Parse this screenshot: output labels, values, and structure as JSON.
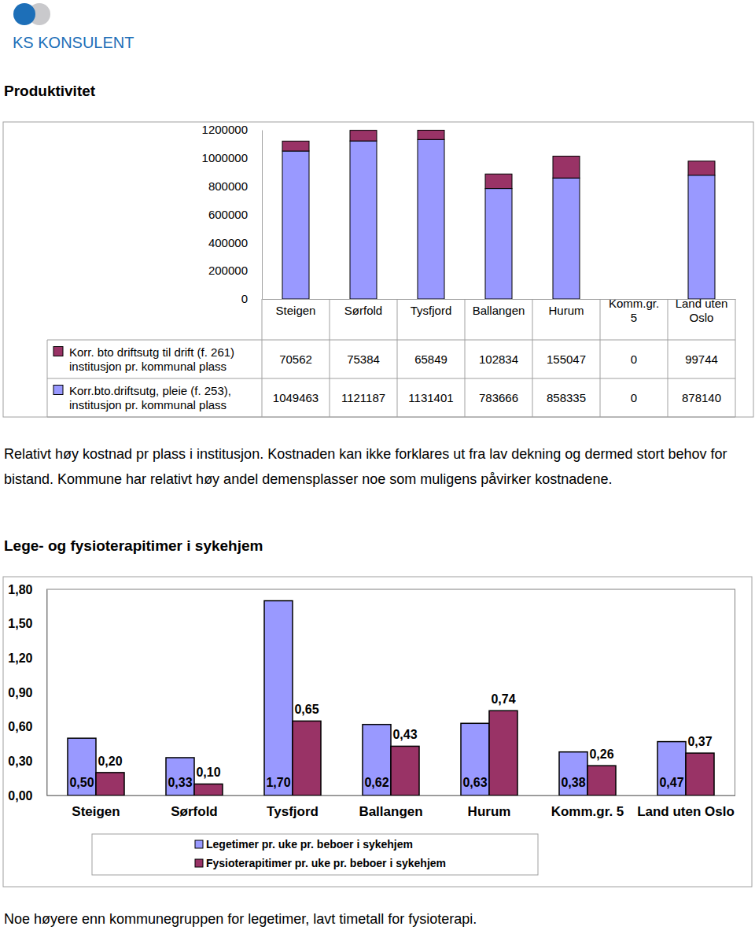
{
  "logo_text": "KS KONSULENT",
  "heading_1": "Produktivitet",
  "paragraph_1": "Relativt høy kostnad pr plass i institusjon. Kostnaden kan ikke forklares ut fra lav dekning og dermed stort behov for bistand. Kommune har relativt høy andel demensplasser noe som muligens påvirker kostnadene.",
  "heading_2": "Lege- og fysioterapitimer i sykehjem",
  "paragraph_2": "Noe høyere enn kommunegruppen for legetimer, lavt timetall for fysioterapi.",
  "chart_data": [
    {
      "type": "bar",
      "stacked": true,
      "grid": false,
      "legend": "left",
      "categories": [
        "Steigen",
        "Sørfold",
        "Tysfjord",
        "Ballangen",
        "Hurum",
        "Komm.gr. 5",
        "Land uten Oslo"
      ],
      "series": [
        {
          "name": "Korr.bto.driftsutg, pleie (f. 253), institusjon pr. kommunal plass",
          "color": "#9999FF",
          "values": [
            1049463,
            1121187,
            1131401,
            783666,
            858335,
            0,
            878140
          ]
        },
        {
          "name": "Korr. bto driftsutg til drift (f. 261) institusjon pr. kommunal plass",
          "color": "#993366",
          "values": [
            70562,
            75384,
            65849,
            102834,
            155047,
            0,
            99744
          ]
        }
      ],
      "ylim": [
        0,
        1200000
      ],
      "yticks": [
        0,
        200000,
        400000,
        600000,
        800000,
        1000000,
        1200000
      ]
    },
    {
      "type": "bar",
      "grid": false,
      "legend": "bottom",
      "data_labels": true,
      "categories": [
        "Steigen",
        "Sørfold",
        "Tysfjord",
        "Ballangen",
        "Hurum",
        "Komm.gr. 5",
        "Land uten Oslo"
      ],
      "series": [
        {
          "name": "Legetimer pr. uke pr. beboer i sykehjem",
          "color": "#9999FF",
          "values": [
            0.5,
            0.33,
            1.7,
            0.62,
            0.63,
            0.38,
            0.47
          ],
          "value_labels": [
            "0,50",
            "0,33",
            "1,70",
            "0,62",
            "0,63",
            "0,38",
            "0,47"
          ]
        },
        {
          "name": "Fysioterapitimer pr. uke pr. beboer i sykehjem",
          "color": "#993366",
          "values": [
            0.2,
            0.1,
            0.65,
            0.43,
            0.74,
            0.26,
            0.37
          ],
          "value_labels": [
            "0,20",
            "0,10",
            "0,65",
            "0,43",
            "0,74",
            "0,26",
            "0,37"
          ]
        }
      ],
      "ylim": [
        0,
        1.8
      ],
      "yticks": [
        {
          "value": 0,
          "label": "0,00"
        },
        {
          "value": 0.3,
          "label": "0,30"
        },
        {
          "value": 0.6,
          "label": "0,60"
        },
        {
          "value": 0.9,
          "label": "0,90"
        },
        {
          "value": 1.2,
          "label": "1,20"
        },
        {
          "value": 1.5,
          "label": "1,50"
        },
        {
          "value": 1.8,
          "label": "1,80"
        }
      ]
    }
  ]
}
